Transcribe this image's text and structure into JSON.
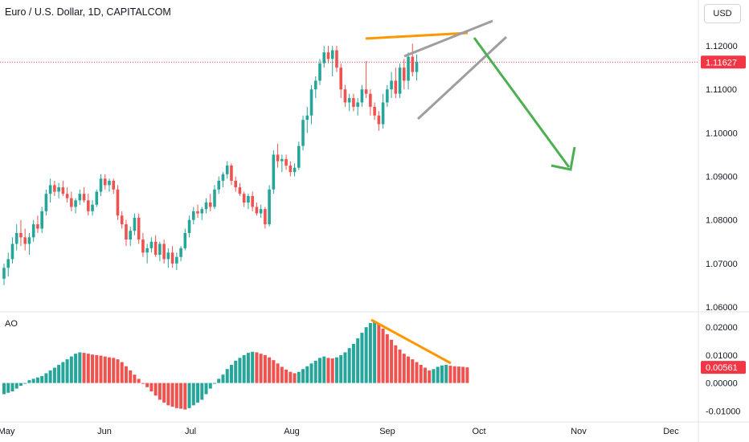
{
  "header": {
    "title": "Euro / U.S. Dollar, 1D, CAPITALCOM",
    "currency": "USD"
  },
  "colors": {
    "up": "#26a69a",
    "down": "#ef5350",
    "price_tag": "#f23645",
    "orange": "#ff9800",
    "grey": "#9e9e9e",
    "green_arrow": "#4caf50",
    "axis_text": "#131722"
  },
  "chart_data": [
    {
      "type": "candlestick",
      "title": "Euro / U.S. Dollar, 1D, CAPITALCOM",
      "yaxis_ticks": [
        "1.12000",
        "1.11000",
        "1.10000",
        "1.09000",
        "1.08000",
        "1.07000",
        "1.06000"
      ],
      "xaxis_ticks": [
        "May",
        "Jun",
        "Jul",
        "Aug",
        "Sep",
        "Oct",
        "Nov",
        "Dec"
      ],
      "ylim": [
        1.06,
        1.125
      ],
      "last_price": "1.11627",
      "candles": [
        [
          1.0665,
          1.07,
          1.065,
          1.069
        ],
        [
          1.069,
          1.0725,
          1.067,
          1.071
        ],
        [
          1.071,
          1.076,
          1.07,
          1.0745
        ],
        [
          1.0745,
          1.079,
          1.073,
          1.077
        ],
        [
          1.077,
          1.08,
          1.074,
          1.076
        ],
        [
          1.076,
          1.078,
          1.073,
          1.0745
        ],
        [
          1.0745,
          1.077,
          1.072,
          1.076
        ],
        [
          1.076,
          1.08,
          1.075,
          1.079
        ],
        [
          1.079,
          1.081,
          1.077,
          1.078
        ],
        [
          1.078,
          1.083,
          1.077,
          1.082
        ],
        [
          1.082,
          1.087,
          1.081,
          1.086
        ],
        [
          1.086,
          1.0895,
          1.084,
          1.088
        ],
        [
          1.088,
          1.089,
          1.0855,
          1.0865
        ],
        [
          1.0865,
          1.0885,
          1.085,
          1.0875
        ],
        [
          1.0875,
          1.089,
          1.0855,
          1.086
        ],
        [
          1.086,
          1.0875,
          1.084,
          1.085
        ],
        [
          1.085,
          1.0865,
          1.082,
          1.083
        ],
        [
          1.083,
          1.085,
          1.0815,
          1.0845
        ],
        [
          1.0845,
          1.087,
          1.0835,
          1.086
        ],
        [
          1.086,
          1.0875,
          1.084,
          1.0845
        ],
        [
          1.0845,
          1.086,
          1.081,
          1.082
        ],
        [
          1.082,
          1.0845,
          1.081,
          1.0835
        ],
        [
          1.0835,
          1.087,
          1.083,
          1.0865
        ],
        [
          1.0865,
          1.0905,
          1.0855,
          1.0895
        ],
        [
          1.0895,
          1.0905,
          1.087,
          1.088
        ],
        [
          1.088,
          1.0895,
          1.0865,
          1.089
        ],
        [
          1.089,
          1.0895,
          1.086,
          1.087
        ],
        [
          1.087,
          1.088,
          1.08,
          1.081
        ],
        [
          1.081,
          1.082,
          1.078,
          1.079
        ],
        [
          1.079,
          1.08,
          1.074,
          1.0755
        ],
        [
          1.0755,
          1.0785,
          1.074,
          1.0775
        ],
        [
          1.0775,
          1.0815,
          1.0765,
          1.0805
        ],
        [
          1.0805,
          1.0815,
          1.0745,
          1.0755
        ],
        [
          1.0755,
          1.077,
          1.0715,
          1.0725
        ],
        [
          1.0725,
          1.0745,
          1.07,
          1.0735
        ],
        [
          1.0735,
          1.076,
          1.0725,
          1.075
        ],
        [
          1.075,
          1.0765,
          1.0715,
          1.072
        ],
        [
          1.072,
          1.075,
          1.0705,
          1.0745
        ],
        [
          1.0745,
          1.0755,
          1.07,
          1.071
        ],
        [
          1.071,
          1.0735,
          1.069,
          1.0725
        ],
        [
          1.0725,
          1.074,
          1.069,
          1.07
        ],
        [
          1.07,
          1.0725,
          1.0685,
          1.0715
        ],
        [
          1.0715,
          1.074,
          1.0705,
          1.0735
        ],
        [
          1.0735,
          1.078,
          1.073,
          1.077
        ],
        [
          1.077,
          1.081,
          1.076,
          1.08
        ],
        [
          1.08,
          1.083,
          1.079,
          1.082
        ],
        [
          1.082,
          1.0835,
          1.0805,
          1.0815
        ],
        [
          1.0815,
          1.083,
          1.08,
          1.0825
        ],
        [
          1.0825,
          1.085,
          1.0815,
          1.084
        ],
        [
          1.084,
          1.086,
          1.082,
          1.083
        ],
        [
          1.083,
          1.088,
          1.0825,
          1.087
        ],
        [
          1.087,
          1.09,
          1.086,
          1.089
        ],
        [
          1.089,
          1.091,
          1.0875,
          1.0905
        ],
        [
          1.0905,
          1.0935,
          1.0895,
          1.0925
        ],
        [
          1.0925,
          1.093,
          1.088,
          1.089
        ],
        [
          1.089,
          1.09,
          1.0865,
          1.0875
        ],
        [
          1.0875,
          1.0885,
          1.0855,
          1.086
        ],
        [
          1.086,
          1.0865,
          1.083,
          1.084
        ],
        [
          1.084,
          1.086,
          1.0825,
          1.0855
        ],
        [
          1.0855,
          1.0865,
          1.082,
          1.083
        ],
        [
          1.083,
          1.084,
          1.081,
          1.0815
        ],
        [
          1.0815,
          1.0835,
          1.0805,
          1.0825
        ],
        [
          1.0825,
          1.083,
          1.078,
          1.079
        ],
        [
          1.079,
          1.088,
          1.0785,
          1.087
        ],
        [
          1.087,
          1.096,
          1.086,
          1.095
        ],
        [
          1.095,
          1.0975,
          1.092,
          1.0935
        ],
        [
          1.0935,
          1.095,
          1.091,
          1.094
        ],
        [
          1.094,
          1.095,
          1.0915,
          1.0925
        ],
        [
          1.0925,
          1.0935,
          1.09,
          1.091
        ],
        [
          1.091,
          1.093,
          1.09,
          1.092
        ],
        [
          1.092,
          1.098,
          1.0915,
          1.097
        ],
        [
          1.097,
          1.104,
          1.096,
          1.103
        ],
        [
          1.103,
          1.106,
          1.1,
          1.104
        ],
        [
          1.104,
          1.111,
          1.102,
          1.11
        ],
        [
          1.11,
          1.113,
          1.108,
          1.112
        ],
        [
          1.112,
          1.117,
          1.111,
          1.116
        ],
        [
          1.116,
          1.12,
          1.115,
          1.1185
        ],
        [
          1.1185,
          1.12,
          1.116,
          1.117
        ],
        [
          1.117,
          1.12,
          1.113,
          1.119
        ],
        [
          1.119,
          1.12,
          1.114,
          1.115
        ],
        [
          1.115,
          1.116,
          1.108,
          1.11
        ],
        [
          1.11,
          1.111,
          1.106,
          1.107
        ],
        [
          1.107,
          1.109,
          1.105,
          1.108
        ],
        [
          1.108,
          1.109,
          1.105,
          1.106
        ],
        [
          1.106,
          1.108,
          1.104,
          1.107
        ],
        [
          1.107,
          1.111,
          1.106,
          1.11
        ],
        [
          1.11,
          1.1165,
          1.108,
          1.109
        ],
        [
          1.109,
          1.11,
          1.104,
          1.106
        ],
        [
          1.106,
          1.107,
          1.103,
          1.104
        ],
        [
          1.104,
          1.105,
          1.1005,
          1.102
        ],
        [
          1.102,
          1.109,
          1.101,
          1.107
        ],
        [
          1.107,
          1.111,
          1.106,
          1.11
        ],
        [
          1.11,
          1.114,
          1.108,
          1.112
        ],
        [
          1.112,
          1.115,
          1.108,
          1.109
        ],
        [
          1.109,
          1.116,
          1.108,
          1.115
        ],
        [
          1.115,
          1.117,
          1.11,
          1.112
        ],
        [
          1.112,
          1.1185,
          1.11,
          1.1175
        ],
        [
          1.1175,
          1.1205,
          1.113,
          1.114
        ],
        [
          1.114,
          1.118,
          1.112,
          1.1163
        ]
      ]
    },
    {
      "type": "bar",
      "title": "AO",
      "yaxis_ticks": [
        "0.02000",
        "0.01000",
        "0.00000",
        "-0.01000"
      ],
      "ylim": [
        -0.0125,
        0.0235
      ],
      "last_value": "0.00561",
      "values": [
        -0.004,
        -0.0035,
        -0.003,
        -0.002,
        -0.001,
        0.0,
        0.001,
        0.0015,
        0.002,
        0.0025,
        0.0035,
        0.0045,
        0.0055,
        0.0065,
        0.0075,
        0.0085,
        0.0095,
        0.0105,
        0.011,
        0.0108,
        0.0105,
        0.0102,
        0.01,
        0.0098,
        0.0095,
        0.0092,
        0.009,
        0.0085,
        0.0075,
        0.006,
        0.0045,
        0.003,
        0.0015,
        0.0,
        -0.0015,
        -0.003,
        -0.0045,
        -0.006,
        -0.007,
        -0.008,
        -0.0085,
        -0.009,
        -0.0092,
        -0.0095,
        -0.009,
        -0.008,
        -0.007,
        -0.006,
        -0.004,
        -0.002,
        0.0,
        0.0015,
        0.003,
        0.005,
        0.0065,
        0.008,
        0.009,
        0.01,
        0.0108,
        0.0112,
        0.011,
        0.0105,
        0.01,
        0.0092,
        0.0082,
        0.007,
        0.0058,
        0.0048,
        0.004,
        0.0035,
        0.004,
        0.005,
        0.006,
        0.007,
        0.008,
        0.009,
        0.0095,
        0.009,
        0.0088,
        0.0092,
        0.01,
        0.011,
        0.0125,
        0.014,
        0.016,
        0.018,
        0.02,
        0.0215,
        0.022,
        0.021,
        0.0195,
        0.0175,
        0.0155,
        0.0135,
        0.012,
        0.0105,
        0.0095,
        0.0085,
        0.0075,
        0.0065,
        0.0055,
        0.0045,
        0.005,
        0.0058,
        0.0063,
        0.0065,
        0.0062,
        0.006,
        0.0059,
        0.0058,
        0.0056
      ]
    }
  ]
}
